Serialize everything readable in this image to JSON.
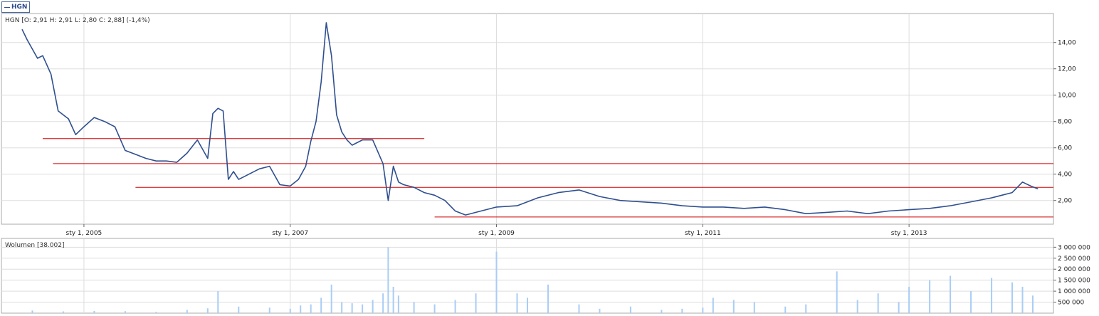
{
  "legend": {
    "label": "HGN"
  },
  "colors": {
    "price": "#2f4f8f",
    "support": "#d40000",
    "volume": "#a9cdf5",
    "grid": "#dddddd",
    "frame": "#aaaaaa"
  },
  "chart_data": [
    {
      "type": "line",
      "title": "HGN [O: 2,91  H: 2,91  L: 2,80  C: 2,88] (-1,4%)",
      "xlabel": "",
      "ylabel": "",
      "x_tick_labels": [
        "sty 1, 2005",
        "sty 1, 2007",
        "sty 1, 2009",
        "sty 1, 2011",
        "sty 1, 2013"
      ],
      "x_tick_values": [
        2005.0,
        2007.0,
        2009.0,
        2011.0,
        2013.0
      ],
      "xlim": [
        2004.2,
        2014.4
      ],
      "y_tick_labels": [
        "2,00",
        "4,00",
        "6,00",
        "8,00",
        "10,00",
        "12,00",
        "14,00"
      ],
      "y_tick_values": [
        2,
        4,
        6,
        8,
        10,
        12,
        14
      ],
      "ylim": [
        0.2,
        16.2
      ],
      "grid": true,
      "series": [
        {
          "name": "HGN",
          "x": [
            2004.4,
            2004.45,
            2004.55,
            2004.6,
            2004.68,
            2004.75,
            2004.85,
            2004.92,
            2005.0,
            2005.1,
            2005.2,
            2005.3,
            2005.4,
            2005.5,
            2005.6,
            2005.7,
            2005.8,
            2005.9,
            2006.0,
            2006.1,
            2006.2,
            2006.25,
            2006.3,
            2006.35,
            2006.4,
            2006.45,
            2006.5,
            2006.55,
            2006.6,
            2006.7,
            2006.8,
            2006.9,
            2007.0,
            2007.08,
            2007.15,
            2007.2,
            2007.25,
            2007.3,
            2007.35,
            2007.4,
            2007.45,
            2007.5,
            2007.55,
            2007.6,
            2007.7,
            2007.8,
            2007.9,
            2007.95,
            2008.0,
            2008.05,
            2008.1,
            2008.15,
            2008.2,
            2008.3,
            2008.4,
            2008.5,
            2008.6,
            2008.7,
            2008.8,
            2008.9,
            2009.0,
            2009.2,
            2009.4,
            2009.6,
            2009.8,
            2010.0,
            2010.2,
            2010.4,
            2010.6,
            2010.8,
            2011.0,
            2011.2,
            2011.4,
            2011.6,
            2011.8,
            2012.0,
            2012.2,
            2012.4,
            2012.6,
            2012.8,
            2013.0,
            2013.2,
            2013.4,
            2013.6,
            2013.8,
            2013.9,
            2014.0,
            2014.1,
            2014.18,
            2014.25
          ],
          "y": [
            15.0,
            14.2,
            12.8,
            13.0,
            11.6,
            8.8,
            8.2,
            7.0,
            7.6,
            8.3,
            8.0,
            7.6,
            5.8,
            5.5,
            5.2,
            5.0,
            5.0,
            4.9,
            5.6,
            6.6,
            5.2,
            8.6,
            9.0,
            8.8,
            3.6,
            4.2,
            3.6,
            3.8,
            4.0,
            4.4,
            4.6,
            3.2,
            3.1,
            3.6,
            4.6,
            6.5,
            8.0,
            11.0,
            15.5,
            13.0,
            8.5,
            7.2,
            6.6,
            6.2,
            6.6,
            6.6,
            4.8,
            2.0,
            4.6,
            3.4,
            3.2,
            3.1,
            3.0,
            2.6,
            2.4,
            2.0,
            1.2,
            0.9,
            1.1,
            1.3,
            1.5,
            1.6,
            2.2,
            2.6,
            2.8,
            2.3,
            2.0,
            1.9,
            1.8,
            1.6,
            1.5,
            1.5,
            1.4,
            1.5,
            1.3,
            1.0,
            1.1,
            1.2,
            1.0,
            1.2,
            1.3,
            1.4,
            1.6,
            1.9,
            2.2,
            2.4,
            2.6,
            3.4,
            3.1,
            2.88
          ]
        }
      ],
      "reference_lines": [
        {
          "y": 6.7,
          "x_from": 2004.6,
          "x_to": 2008.3
        },
        {
          "y": 4.8,
          "x_from": 2004.7,
          "x_to": 2014.4
        },
        {
          "y": 3.0,
          "x_from": 2005.5,
          "x_to": 2014.4
        },
        {
          "y": 0.75,
          "x_from": 2008.4,
          "x_to": 2014.4
        }
      ]
    },
    {
      "type": "bar",
      "title": "Wolumen [38.002]",
      "xlim": [
        2004.2,
        2014.4
      ],
      "y_tick_labels": [
        "500 000",
        "1 000 000",
        "1 500 000",
        "2 000 000",
        "2 500 000",
        "3 000 000"
      ],
      "y_tick_values": [
        500000,
        1000000,
        1500000,
        2000000,
        2500000,
        3000000
      ],
      "ylim": [
        0,
        3400000
      ],
      "grid": true,
      "x": [
        2004.5,
        2004.8,
        2005.1,
        2005.4,
        2005.7,
        2006.0,
        2006.2,
        2006.3,
        2006.5,
        2006.8,
        2007.0,
        2007.1,
        2007.2,
        2007.3,
        2007.4,
        2007.5,
        2007.6,
        2007.7,
        2007.8,
        2007.9,
        2007.95,
        2008.0,
        2008.05,
        2008.2,
        2008.4,
        2008.6,
        2008.8,
        2009.0,
        2009.2,
        2009.3,
        2009.5,
        2009.8,
        2010.0,
        2010.3,
        2010.6,
        2010.8,
        2011.0,
        2011.1,
        2011.3,
        2011.5,
        2011.8,
        2012.0,
        2012.3,
        2012.5,
        2012.7,
        2012.9,
        2013.0,
        2013.2,
        2013.4,
        2013.6,
        2013.8,
        2014.0,
        2014.1,
        2014.2
      ],
      "values": [
        120000,
        80000,
        100000,
        90000,
        60000,
        150000,
        220000,
        1000000,
        300000,
        250000,
        200000,
        350000,
        400000,
        700000,
        1300000,
        500000,
        450000,
        400000,
        600000,
        900000,
        3000000,
        1200000,
        800000,
        500000,
        400000,
        600000,
        900000,
        2800000,
        900000,
        700000,
        1300000,
        400000,
        200000,
        300000,
        150000,
        200000,
        250000,
        700000,
        600000,
        500000,
        300000,
        400000,
        1900000,
        600000,
        900000,
        500000,
        1200000,
        1500000,
        1700000,
        1000000,
        1600000,
        1400000,
        1200000,
        800000
      ]
    }
  ]
}
